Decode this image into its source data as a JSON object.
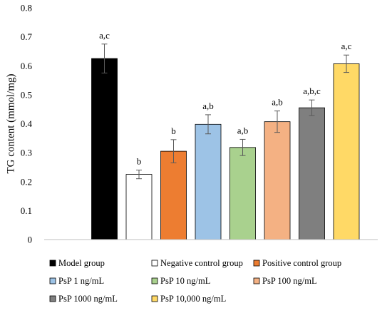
{
  "chart_data": {
    "type": "bar",
    "xlabel": "",
    "ylabel": "TG content (mmol/mg)",
    "ylim": [
      0,
      0.8
    ],
    "yticks": [
      "0",
      "0.1",
      "0.2",
      "0.3",
      "0.4",
      "0.5",
      "0.6",
      "0.7",
      "0.8"
    ],
    "grid": false,
    "legend_position": "bottom",
    "series": [
      {
        "name": "Model group",
        "value": 0.625,
        "error": 0.05,
        "label": "a,c",
        "color": "#000000"
      },
      {
        "name": "Negative control group",
        "value": 0.225,
        "error": 0.015,
        "label": "b",
        "color": "#ffffff"
      },
      {
        "name": "Positive control group",
        "value": 0.305,
        "error": 0.04,
        "label": "b",
        "color": "#ed7d31"
      },
      {
        "name": "PsP 1 ng/mL",
        "value": 0.398,
        "error": 0.033,
        "label": "a,b",
        "color": "#9dc3e6"
      },
      {
        "name": "PsP 10 ng/mL",
        "value": 0.318,
        "error": 0.028,
        "label": "a,b",
        "color": "#a9d18e"
      },
      {
        "name": "PsP 100 ng/mL",
        "value": 0.407,
        "error": 0.037,
        "label": "a,b",
        "color": "#f4b183"
      },
      {
        "name": "PsP 1000 ng/mL",
        "value": 0.455,
        "error": 0.027,
        "label": "a,b,c",
        "color": "#7f7f7f"
      },
      {
        "name": "PsP 10,000 ng/mL",
        "value": 0.607,
        "error": 0.03,
        "label": "a,c",
        "color": "#ffd966"
      }
    ]
  }
}
